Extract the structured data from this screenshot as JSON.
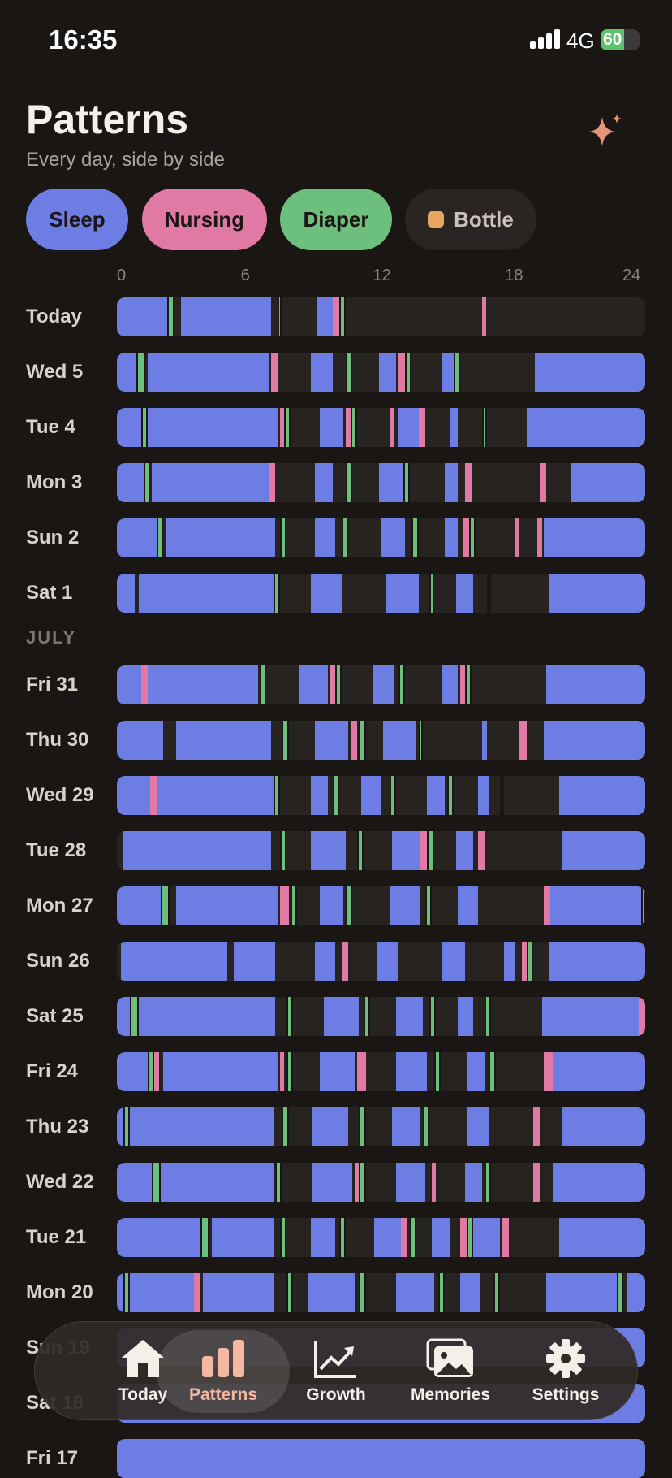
{
  "status_bar": {
    "time": "16:35",
    "network": "4G",
    "battery": "60",
    "battery_level": 0.6
  },
  "header": {
    "title": "Patterns",
    "subtitle": "Every day, side by side"
  },
  "filters": [
    {
      "label": "Sleep",
      "active": true,
      "color": "#6e7de3"
    },
    {
      "label": "Nursing",
      "active": true,
      "color": "#e07aa4"
    },
    {
      "label": "Diaper",
      "active": true,
      "color": "#6cbf7d"
    },
    {
      "label": "Bottle",
      "active": false,
      "color": "#e6a662"
    }
  ],
  "axis_hours": [
    "0",
    "6",
    "12",
    "18",
    "24"
  ],
  "colors": {
    "sleep": "#6e7de3",
    "nursing": "#e07aa4",
    "diaper": "#6cbf7d",
    "bottle": "#e6a662"
  },
  "month_label": "JULY",
  "days": [
    {
      "label": "Today",
      "sleep": [
        [
          0,
          2.3
        ],
        [
          2.9,
          7
        ],
        [
          9.1,
          9.8
        ]
      ],
      "nursing": [
        [
          9.8,
          10.1
        ],
        [
          16.6,
          16.7
        ]
      ],
      "diaper": [
        [
          2.3,
          2.6
        ],
        [
          7.3,
          7.5
        ],
        [
          10.1,
          10.4
        ]
      ]
    },
    {
      "label": "Wed 5",
      "sleep": [
        [
          0,
          0.9
        ],
        [
          1.4,
          6.9
        ],
        [
          8.8,
          9.8
        ],
        [
          11.9,
          12.7
        ],
        [
          14.8,
          15.3
        ],
        [
          19,
          24
        ]
      ],
      "nursing": [
        [
          7,
          7.3
        ],
        [
          12.8,
          13.1
        ]
      ],
      "diaper": [
        [
          0.9,
          1.3
        ],
        [
          10.4,
          10.7
        ],
        [
          13.1,
          13.4
        ],
        [
          15.3,
          15.6
        ]
      ]
    },
    {
      "label": "Tue 4",
      "sleep": [
        [
          0,
          1.1
        ],
        [
          1.4,
          7.3
        ],
        [
          9.2,
          10.3
        ],
        [
          12.8,
          13.8
        ],
        [
          15.1,
          15.5
        ],
        [
          18.6,
          24
        ]
      ],
      "nursing": [
        [
          7.4,
          7.6
        ],
        [
          10.4,
          10.6
        ],
        [
          12.4,
          12.6
        ],
        [
          13.7,
          14
        ]
      ],
      "diaper": [
        [
          1.1,
          1.4
        ],
        [
          7.6,
          7.9
        ],
        [
          10.6,
          10.9
        ],
        [
          16.6,
          16.8
        ]
      ]
    },
    {
      "label": "Mon 3",
      "sleep": [
        [
          0,
          1.2
        ],
        [
          1.6,
          7
        ],
        [
          9,
          9.8
        ],
        [
          11.9,
          13
        ],
        [
          14.9,
          15.5
        ],
        [
          20.6,
          24
        ]
      ],
      "nursing": [
        [
          6.9,
          7.2
        ],
        [
          15.8,
          16.1
        ],
        [
          19.2,
          19.5
        ]
      ],
      "diaper": [
        [
          1.2,
          1.5
        ],
        [
          10.4,
          10.7
        ],
        [
          13,
          13.3
        ]
      ]
    },
    {
      "label": "Sun 2",
      "sleep": [
        [
          0,
          1.8
        ],
        [
          2.2,
          7.2
        ],
        [
          9,
          9.9
        ],
        [
          12,
          13.1
        ],
        [
          14.9,
          15.5
        ],
        [
          19.4,
          24
        ]
      ],
      "nursing": [
        [
          15.7,
          16
        ],
        [
          18.1,
          18.3
        ],
        [
          19.1,
          19.3
        ]
      ],
      "diaper": [
        [
          1.8,
          2.1
        ],
        [
          7.4,
          7.7
        ],
        [
          10.2,
          10.5
        ],
        [
          13.4,
          13.7
        ],
        [
          16,
          16.3
        ]
      ]
    },
    {
      "label": "Sat 1",
      "sleep": [
        [
          0,
          0.8
        ],
        [
          1,
          7.1
        ],
        [
          8.8,
          10.2
        ],
        [
          12.2,
          13.7
        ],
        [
          15.4,
          16.2
        ],
        [
          19.6,
          24
        ]
      ],
      "nursing": [],
      "diaper": [
        [
          7.1,
          7.4
        ],
        [
          14.2,
          14.4
        ],
        [
          16.8,
          17
        ]
      ]
    },
    {
      "label": "Fri 31",
      "month_before": true,
      "sleep": [
        [
          0,
          1.1
        ],
        [
          1.4,
          6.4
        ],
        [
          8.3,
          9.6
        ],
        [
          11.6,
          12.6
        ],
        [
          14.8,
          15.5
        ],
        [
          19.5,
          24
        ]
      ],
      "nursing": [
        [
          1.1,
          1.4
        ],
        [
          9.7,
          9.9
        ],
        [
          15.6,
          15.8
        ]
      ],
      "diaper": [
        [
          6.5,
          6.8
        ],
        [
          9.9,
          10.2
        ],
        [
          12.8,
          13.1
        ],
        [
          15.8,
          16.1
        ]
      ]
    },
    {
      "label": "Thu 30",
      "sleep": [
        [
          0,
          2.1
        ],
        [
          2.7,
          7
        ],
        [
          9,
          10.5
        ],
        [
          12.1,
          13.6
        ],
        [
          16.6,
          16.8
        ],
        [
          19.4,
          24
        ]
      ],
      "nursing": [
        [
          10.6,
          10.9
        ],
        [
          18.3,
          18.6
        ]
      ],
      "diaper": [
        [
          7.5,
          7.8
        ],
        [
          11,
          11.3
        ],
        [
          13.7,
          13.9
        ]
      ]
    },
    {
      "label": "Wed 29",
      "sleep": [
        [
          0,
          1.5
        ],
        [
          1.8,
          7.1
        ],
        [
          8.8,
          9.6
        ],
        [
          11.1,
          12
        ],
        [
          14.1,
          14.9
        ],
        [
          16.4,
          16.9
        ],
        [
          20.1,
          24
        ]
      ],
      "nursing": [
        [
          1.5,
          1.8
        ]
      ],
      "diaper": [
        [
          7.1,
          7.4
        ],
        [
          9.8,
          10.1
        ],
        [
          12.4,
          12.7
        ],
        [
          15,
          15.3
        ],
        [
          17.4,
          17.6
        ]
      ]
    },
    {
      "label": "Tue 28",
      "sleep": [
        [
          0.3,
          7
        ],
        [
          8.8,
          10.4
        ],
        [
          12.5,
          13.8
        ],
        [
          15.4,
          16.2
        ],
        [
          20.2,
          24
        ]
      ],
      "nursing": [
        [
          13.8,
          14.1
        ],
        [
          16.4,
          16.7
        ]
      ],
      "diaper": [
        [
          7.4,
          7.7
        ],
        [
          10.9,
          11.2
        ],
        [
          14.1,
          14.4
        ]
      ]
    },
    {
      "label": "Mon 27",
      "sleep": [
        [
          0,
          2
        ],
        [
          2.7,
          7.3
        ],
        [
          9.2,
          10.3
        ],
        [
          12.4,
          13.8
        ],
        [
          15.5,
          16.4
        ],
        [
          19.7,
          24
        ]
      ],
      "nursing": [
        [
          7.4,
          7.8
        ],
        [
          19.4,
          19.7
        ]
      ],
      "diaper": [
        [
          2,
          2.4
        ],
        [
          7.9,
          8.2
        ],
        [
          10.4,
          10.7
        ],
        [
          14,
          14.3
        ],
        [
          23.8,
          24
        ]
      ]
    },
    {
      "label": "Sun 26",
      "sleep": [
        [
          0.2,
          5
        ],
        [
          5.3,
          7.2
        ],
        [
          9,
          9.9
        ],
        [
          11.8,
          12.8
        ],
        [
          14.8,
          15.8
        ],
        [
          17.6,
          18.1
        ],
        [
          19.6,
          24
        ]
      ],
      "nursing": [
        [
          10.2,
          10.5
        ],
        [
          18.4,
          18.6
        ]
      ],
      "diaper": [
        [
          18.6,
          18.9
        ]
      ]
    },
    {
      "label": "Sat 25",
      "sleep": [
        [
          0,
          0.6
        ],
        [
          1,
          7.2
        ],
        [
          9.4,
          11
        ],
        [
          12.7,
          13.9
        ],
        [
          15.5,
          16.2
        ],
        [
          19.3,
          23.7
        ]
      ],
      "nursing": [
        [
          23.7,
          24
        ]
      ],
      "diaper": [
        [
          0.6,
          1
        ],
        [
          7.7,
          8
        ],
        [
          11.2,
          11.5
        ],
        [
          14.2,
          14.5
        ],
        [
          16.7,
          17
        ]
      ]
    },
    {
      "label": "Fri 24",
      "sleep": [
        [
          0,
          1.4
        ],
        [
          2.1,
          7.3
        ],
        [
          9.2,
          10.8
        ],
        [
          12.7,
          14.1
        ],
        [
          15.9,
          16.7
        ],
        [
          19.7,
          24
        ]
      ],
      "nursing": [
        [
          1.7,
          1.9
        ],
        [
          7.4,
          7.6
        ],
        [
          10.9,
          11.3
        ],
        [
          19.4,
          19.8
        ]
      ],
      "diaper": [
        [
          1.4,
          1.7
        ],
        [
          7.7,
          8
        ],
        [
          14.4,
          14.7
        ],
        [
          16.9,
          17.2
        ]
      ]
    },
    {
      "label": "Thu 23",
      "sleep": [
        [
          0,
          0.3
        ],
        [
          0.6,
          7.1
        ],
        [
          8.9,
          10.5
        ],
        [
          12.5,
          13.8
        ],
        [
          15.9,
          16.9
        ],
        [
          20.2,
          24
        ]
      ],
      "nursing": [
        [
          18.9,
          19.2
        ]
      ],
      "diaper": [
        [
          0.3,
          0.6
        ],
        [
          7.5,
          7.8
        ],
        [
          11,
          11.3
        ],
        [
          13.9,
          14.2
        ]
      ]
    },
    {
      "label": "Wed 22",
      "sleep": [
        [
          0,
          1.6
        ],
        [
          2,
          7.1
        ],
        [
          8.9,
          10.7
        ],
        [
          12.7,
          14
        ],
        [
          15.8,
          16.6
        ],
        [
          19.8,
          24
        ]
      ],
      "nursing": [
        [
          10.8,
          11
        ],
        [
          14.3,
          14.5
        ],
        [
          18.9,
          19.2
        ]
      ],
      "diaper": [
        [
          1.6,
          2
        ],
        [
          7.2,
          7.5
        ],
        [
          11,
          11.3
        ],
        [
          16.7,
          17
        ]
      ]
    },
    {
      "label": "Tue 21",
      "sleep": [
        [
          0,
          3.8
        ],
        [
          4.3,
          7.1
        ],
        [
          8.8,
          9.9
        ],
        [
          11.7,
          12.9
        ],
        [
          14.3,
          15.1
        ],
        [
          16.2,
          17.4
        ],
        [
          20.1,
          24
        ]
      ],
      "nursing": [
        [
          12.9,
          13.2
        ],
        [
          15.6,
          15.9
        ],
        [
          17.5,
          17.8
        ]
      ],
      "diaper": [
        [
          3.8,
          4.2
        ],
        [
          7.4,
          7.7
        ],
        [
          10.1,
          10.4
        ],
        [
          13.3,
          13.6
        ],
        [
          15.9,
          16.2
        ]
      ]
    },
    {
      "label": "Mon 20",
      "sleep": [
        [
          0,
          0.3
        ],
        [
          0.6,
          3.5
        ],
        [
          3.9,
          7.1
        ],
        [
          8.7,
          10.8
        ],
        [
          12.7,
          14.4
        ],
        [
          15.6,
          16.5
        ],
        [
          19.5,
          22.7
        ],
        [
          23.2,
          24
        ]
      ],
      "nursing": [
        [
          3.5,
          3.8
        ]
      ],
      "diaper": [
        [
          0.3,
          0.6
        ],
        [
          7.7,
          8
        ],
        [
          11,
          11.3
        ],
        [
          14.6,
          14.9
        ],
        [
          17.1,
          17.4
        ],
        [
          22.7,
          23
        ]
      ]
    },
    {
      "label": "Sun 19",
      "sleep": [
        [
          0,
          24
        ]
      ],
      "nursing": [],
      "diaper": []
    },
    {
      "label": "Sat 18",
      "sleep": [
        [
          0,
          24
        ]
      ],
      "nursing": [],
      "diaper": []
    },
    {
      "label": "Fri 17",
      "sleep": [
        [
          0,
          24
        ]
      ],
      "nursing": [],
      "diaper": []
    }
  ],
  "tabs": [
    {
      "label": "Today",
      "icon": "house-icon"
    },
    {
      "label": "Patterns",
      "icon": "bar-chart-icon",
      "active": true
    },
    {
      "label": "Growth",
      "icon": "trend-up-icon"
    },
    {
      "label": "Memories",
      "icon": "photos-icon"
    },
    {
      "label": "Settings",
      "icon": "gear-icon"
    }
  ]
}
